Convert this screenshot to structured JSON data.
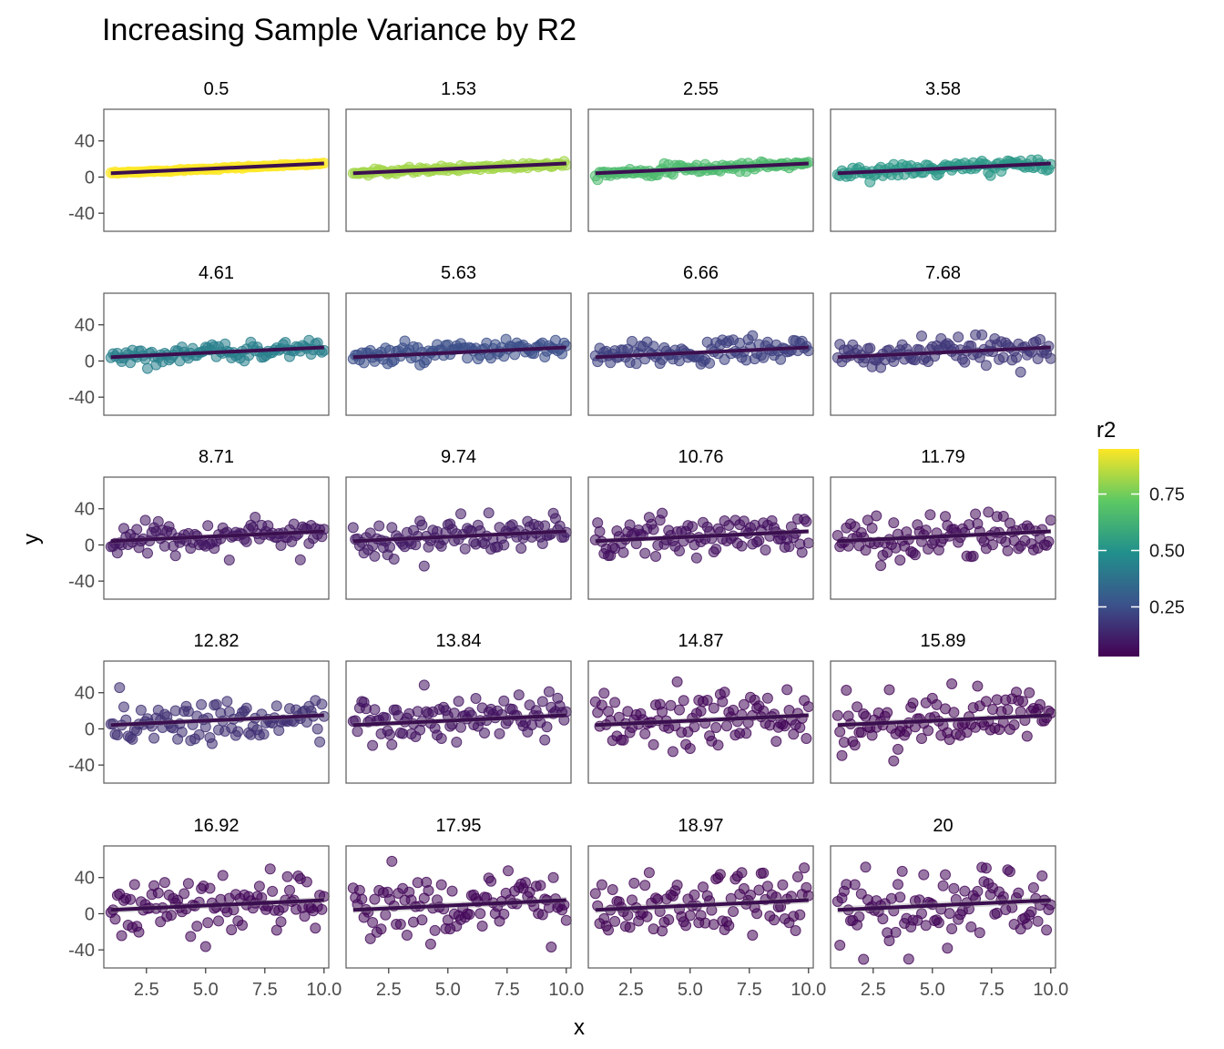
{
  "chart_data": {
    "type": "scatter",
    "title": "Increasing Sample Variance by R2",
    "xlabel": "x",
    "ylabel": "y",
    "xlim": [
      0.7,
      10.2
    ],
    "ylim": [
      -60,
      75
    ],
    "x_ticks": [
      "2.5",
      "5.0",
      "7.5",
      "10.0"
    ],
    "x_tick_values": [
      2.5,
      5.0,
      7.5,
      10.0
    ],
    "y_ticks": [
      "40",
      "0",
      "-40"
    ],
    "y_tick_values": [
      40,
      0,
      -40
    ],
    "grid": false,
    "legend": {
      "title": "r2",
      "placement": "right",
      "type": "colorbar",
      "range": [
        0.03,
        0.95
      ],
      "ticks": [
        "0.75",
        "0.50",
        "0.25"
      ],
      "tick_values": [
        0.75,
        0.5,
        0.25
      ],
      "colors": [
        "#440154",
        "#3b528b",
        "#21908c",
        "#5dc963",
        "#fde725"
      ]
    },
    "points_per_panel": 100,
    "fit_intercept": 3,
    "fit_slope": 1.2,
    "panels": [
      {
        "label": "0.5",
        "sd": 0.5,
        "r2": 0.95
      },
      {
        "label": "1.53",
        "sd": 1.53,
        "r2": 0.82
      },
      {
        "label": "2.55",
        "sd": 2.55,
        "r2": 0.66
      },
      {
        "label": "3.58",
        "sd": 3.58,
        "r2": 0.52
      },
      {
        "label": "4.61",
        "sd": 4.61,
        "r2": 0.43
      },
      {
        "label": "5.63",
        "sd": 5.63,
        "r2": 0.25
      },
      {
        "label": "6.66",
        "sd": 6.66,
        "r2": 0.21
      },
      {
        "label": "7.68",
        "sd": 7.68,
        "r2": 0.18
      },
      {
        "label": "8.71",
        "sd": 8.71,
        "r2": 0.09
      },
      {
        "label": "9.74",
        "sd": 9.74,
        "r2": 0.1
      },
      {
        "label": "10.76",
        "sd": 10.76,
        "r2": 0.07
      },
      {
        "label": "11.79",
        "sd": 11.79,
        "r2": 0.06
      },
      {
        "label": "12.82",
        "sd": 12.82,
        "r2": 0.16
      },
      {
        "label": "13.84",
        "sd": 13.84,
        "r2": 0.08
      },
      {
        "label": "14.87",
        "sd": 14.87,
        "r2": 0.05
      },
      {
        "label": "15.89",
        "sd": 15.89,
        "r2": 0.04
      },
      {
        "label": "16.92",
        "sd": 16.92,
        "r2": 0.05
      },
      {
        "label": "17.95",
        "sd": 17.95,
        "r2": 0.05
      },
      {
        "label": "18.97",
        "sd": 18.97,
        "r2": 0.04
      },
      {
        "label": "20",
        "sd": 20,
        "r2": 0.05
      }
    ]
  }
}
